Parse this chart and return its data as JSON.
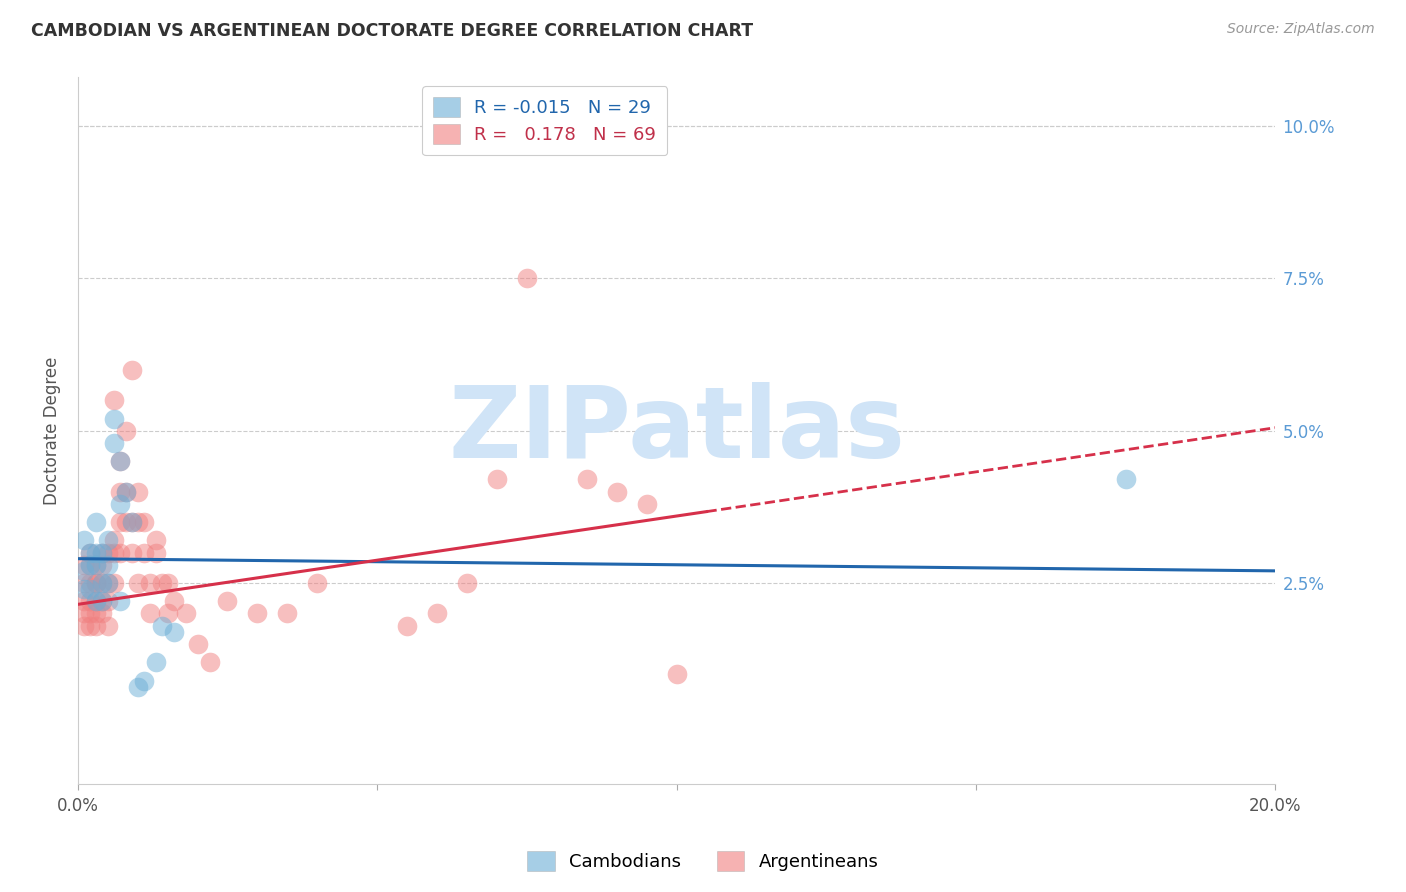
{
  "title": "CAMBODIAN VS ARGENTINEAN DOCTORATE DEGREE CORRELATION CHART",
  "source": "Source: ZipAtlas.com",
  "ylabel": "Doctorate Degree",
  "xlim": [
    0.0,
    0.2
  ],
  "ylim": [
    -0.008,
    0.108
  ],
  "ytick_vals": [
    0.0,
    0.025,
    0.05,
    0.075,
    0.1
  ],
  "ytick_labels": [
    "",
    "2.5%",
    "5.0%",
    "7.5%",
    "10.0%"
  ],
  "xtick_vals": [
    0.0,
    0.05,
    0.1,
    0.15,
    0.2
  ],
  "xtick_labels": [
    "0.0%",
    "",
    "",
    "",
    "20.0%"
  ],
  "cambodian_color": "#92c5de",
  "argentinean_color": "#f4a582",
  "cambodian_scatter_color": "#6baed6",
  "argentinean_scatter_color": "#f08080",
  "cambodian_line_color": "#2166ac",
  "argentinean_line_color": "#d6304a",
  "watermark_text": "ZIPatlas",
  "watermark_color": "#d0e4f7",
  "background_color": "#ffffff",
  "grid_color": "#cccccc",
  "r_cambodian": -0.015,
  "r_argentinean": 0.178,
  "n_cambodian": 29,
  "n_argentinean": 69,
  "cam_line_intercept": 0.029,
  "cam_line_slope": -0.01,
  "arg_line_intercept": 0.0215,
  "arg_line_slope": 0.145,
  "arg_line_solid_end": 0.105,
  "cambodian_scatter": {
    "x": [
      0.001,
      0.001,
      0.001,
      0.002,
      0.002,
      0.002,
      0.003,
      0.003,
      0.003,
      0.003,
      0.004,
      0.004,
      0.004,
      0.005,
      0.005,
      0.005,
      0.006,
      0.006,
      0.007,
      0.007,
      0.007,
      0.008,
      0.009,
      0.01,
      0.011,
      0.013,
      0.014,
      0.016,
      0.175
    ],
    "y": [
      0.027,
      0.024,
      0.032,
      0.03,
      0.024,
      0.028,
      0.03,
      0.028,
      0.022,
      0.035,
      0.025,
      0.03,
      0.022,
      0.028,
      0.025,
      0.032,
      0.048,
      0.052,
      0.045,
      0.038,
      0.022,
      0.04,
      0.035,
      0.008,
      0.009,
      0.012,
      0.018,
      0.017,
      0.042
    ]
  },
  "argentinean_scatter": {
    "x": [
      0.001,
      0.001,
      0.001,
      0.001,
      0.001,
      0.002,
      0.002,
      0.002,
      0.002,
      0.002,
      0.002,
      0.003,
      0.003,
      0.003,
      0.003,
      0.003,
      0.003,
      0.004,
      0.004,
      0.004,
      0.004,
      0.004,
      0.005,
      0.005,
      0.005,
      0.005,
      0.006,
      0.006,
      0.006,
      0.006,
      0.007,
      0.007,
      0.007,
      0.007,
      0.008,
      0.008,
      0.008,
      0.009,
      0.009,
      0.009,
      0.01,
      0.01,
      0.01,
      0.011,
      0.011,
      0.012,
      0.012,
      0.013,
      0.013,
      0.014,
      0.015,
      0.015,
      0.016,
      0.018,
      0.02,
      0.022,
      0.025,
      0.03,
      0.035,
      0.04,
      0.055,
      0.06,
      0.065,
      0.07,
      0.075,
      0.085,
      0.09,
      0.095,
      0.1
    ],
    "y": [
      0.022,
      0.025,
      0.028,
      0.02,
      0.018,
      0.02,
      0.022,
      0.025,
      0.028,
      0.03,
      0.018,
      0.022,
      0.025,
      0.028,
      0.02,
      0.025,
      0.018,
      0.02,
      0.022,
      0.025,
      0.028,
      0.03,
      0.025,
      0.022,
      0.03,
      0.018,
      0.025,
      0.03,
      0.032,
      0.055,
      0.03,
      0.035,
      0.04,
      0.045,
      0.035,
      0.04,
      0.05,
      0.03,
      0.035,
      0.06,
      0.035,
      0.04,
      0.025,
      0.03,
      0.035,
      0.02,
      0.025,
      0.03,
      0.032,
      0.025,
      0.02,
      0.025,
      0.022,
      0.02,
      0.015,
      0.012,
      0.022,
      0.02,
      0.02,
      0.025,
      0.018,
      0.02,
      0.025,
      0.042,
      0.075,
      0.042,
      0.04,
      0.038,
      0.01
    ]
  }
}
